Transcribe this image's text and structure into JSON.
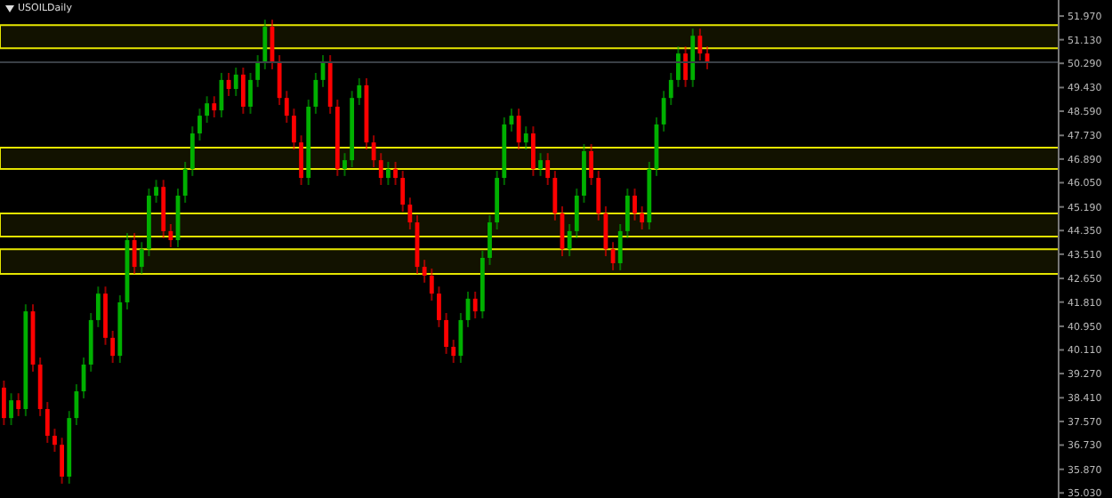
{
  "chart_data": {
    "type": "candlestick",
    "title": "USOILDaily",
    "categories": [
      null,
      null,
      null,
      null,
      null,
      null,
      null,
      null,
      null,
      null,
      null,
      null,
      null,
      null,
      null,
      null,
      null,
      null,
      null,
      null,
      null,
      null,
      null,
      null,
      null,
      null,
      null,
      null,
      null,
      null,
      null,
      null,
      null,
      null,
      null,
      null,
      null,
      null,
      null,
      null,
      null,
      null,
      null,
      null,
      null,
      null,
      null,
      null,
      null,
      null,
      null,
      null,
      null,
      null,
      null,
      null,
      null,
      null,
      null,
      null,
      null,
      null,
      null,
      null,
      null,
      null,
      null,
      null,
      null,
      null,
      null,
      null,
      null,
      null,
      null,
      null,
      null,
      null,
      null,
      null,
      null,
      null,
      null,
      null,
      null,
      null,
      null,
      null,
      null,
      null,
      null,
      null,
      null,
      null,
      null,
      null,
      null,
      null,
      null,
      null,
      null,
      null,
      null,
      null,
      null,
      null,
      null,
      null,
      null,
      null,
      null,
      null,
      null,
      null,
      null,
      null,
      null,
      null,
      null,
      null,
      null,
      null,
      null,
      null,
      null,
      null,
      null,
      null,
      null,
      null,
      null,
      null,
      null,
      null,
      null,
      null,
      null,
      null,
      null,
      null,
      null,
      null,
      null,
      null,
      null,
      null
    ],
    "colors": [
      "#ff0000",
      "#00b000",
      "#ff0000",
      "#00b000",
      "#ff0000",
      "#ff0000",
      "#ff0000",
      "#ff0000",
      "#ff0000",
      "#00b000",
      "#00b000",
      "#00b000",
      "#00b000",
      "#00b000",
      "#ff0000",
      "#ff0000",
      "#00b000",
      "#00b000",
      "#ff0000",
      "#00b000",
      "#00b000",
      "#00b000",
      "#ff0000",
      "#ff0000",
      "#00b000",
      "#00b000",
      "#00b000",
      "#00b000",
      "#00b000",
      "#ff0000",
      "#00b000",
      "#ff0000",
      "#00b000",
      "#ff0000",
      "#00b000",
      "#00b000",
      "#00b000",
      "#ff0000",
      "#ff0000",
      "#ff0000",
      "#ff0000",
      "#ff0000",
      "#00b000",
      "#00b000",
      "#00b000",
      "#ff0000",
      "#ff0000",
      "#00b000",
      "#00b000",
      "#00b000",
      "#ff0000",
      "#ff0000",
      "#ff0000",
      "#00b000",
      "#ff0000",
      "#ff0000",
      "#ff0000",
      "#ff0000",
      "#ff0000",
      "#ff0000",
      "#ff0000",
      "#ff0000",
      "#ff0000",
      "#00b000",
      "#00b000",
      "#ff0000",
      "#00b000",
      "#00b000",
      "#00b000",
      "#00b000",
      "#00b000",
      "#ff0000",
      "#00b000",
      "#ff0000",
      "#00b000",
      "#ff0000",
      "#ff0000",
      "#ff0000",
      "#00b000",
      "#00b000",
      "#00b000",
      "#ff0000",
      "#ff0000",
      "#ff0000",
      "#ff0000",
      "#00b000",
      "#00b000",
      "#ff0000",
      "#ff0000",
      "#00b000",
      "#00b000",
      "#00b000",
      "#00b000",
      "#00b000",
      "#ff0000",
      "#00b000",
      "#ff0000",
      "#ff0000",
      null,
      null,
      null,
      null,
      null,
      null,
      null,
      null,
      null,
      null,
      null,
      null,
      null,
      null,
      null,
      null,
      null,
      null,
      null,
      null,
      null,
      null,
      null,
      null,
      null,
      null,
      null,
      null,
      null,
      null,
      null,
      null,
      null,
      null,
      null,
      null,
      null,
      null,
      null,
      null,
      null,
      null,
      null,
      null,
      null,
      null,
      null,
      null
    ],
    "ohlc": [
      [
        38.77,
        39.02,
        37.44,
        37.69
      ],
      [
        37.69,
        38.57,
        37.44,
        38.32
      ],
      [
        38.32,
        38.57,
        37.76,
        38.01
      ],
      [
        38.01,
        41.73,
        37.76,
        41.48
      ],
      [
        41.48,
        41.73,
        39.34,
        39.59
      ],
      [
        39.59,
        39.84,
        37.76,
        38.01
      ],
      [
        38.01,
        38.26,
        36.81,
        37.06
      ],
      [
        37.06,
        37.31,
        36.49,
        36.74
      ],
      [
        36.74,
        36.99,
        35.36,
        35.61
      ],
      [
        35.61,
        37.94,
        35.36,
        37.69
      ],
      [
        37.69,
        38.89,
        37.44,
        38.64
      ],
      [
        38.64,
        39.84,
        38.39,
        39.59
      ],
      [
        39.59,
        41.42,
        39.34,
        41.17
      ],
      [
        41.17,
        42.36,
        40.92,
        42.11
      ],
      [
        42.11,
        42.36,
        40.29,
        40.54
      ],
      [
        40.54,
        40.79,
        39.65,
        39.9
      ],
      [
        39.9,
        42.05,
        39.65,
        41.8
      ],
      [
        41.8,
        44.26,
        41.55,
        44.01
      ],
      [
        44.01,
        44.26,
        42.81,
        43.06
      ],
      [
        43.06,
        43.94,
        42.81,
        43.69
      ],
      [
        43.69,
        45.84,
        43.44,
        45.59
      ],
      [
        45.59,
        46.15,
        45.34,
        45.9
      ],
      [
        45.9,
        46.15,
        44.08,
        44.33
      ],
      [
        44.33,
        44.58,
        43.76,
        44.01
      ],
      [
        44.01,
        45.84,
        43.76,
        45.59
      ],
      [
        45.59,
        46.79,
        45.34,
        46.54
      ],
      [
        46.54,
        48.05,
        46.29,
        47.8
      ],
      [
        47.8,
        48.68,
        47.55,
        48.43
      ],
      [
        48.43,
        49.12,
        48.18,
        48.87
      ],
      [
        48.87,
        49.12,
        48.37,
        48.62
      ],
      [
        48.62,
        49.95,
        48.37,
        49.7
      ],
      [
        49.7,
        49.95,
        49.13,
        49.38
      ],
      [
        49.38,
        50.14,
        49.13,
        49.89
      ],
      [
        49.89,
        50.14,
        48.5,
        48.75
      ],
      [
        48.75,
        49.95,
        48.5,
        49.7
      ],
      [
        49.7,
        50.58,
        49.45,
        50.33
      ],
      [
        50.33,
        51.84,
        50.08,
        51.59
      ],
      [
        51.59,
        51.84,
        50.08,
        50.33
      ],
      [
        50.33,
        50.58,
        48.81,
        49.06
      ],
      [
        49.06,
        49.31,
        48.18,
        48.43
      ],
      [
        48.43,
        48.68,
        47.23,
        47.48
      ],
      [
        47.48,
        47.73,
        45.97,
        46.22
      ],
      [
        46.22,
        49.0,
        45.97,
        48.75
      ],
      [
        48.75,
        49.95,
        48.5,
        49.7
      ],
      [
        49.7,
        50.58,
        49.45,
        50.33
      ],
      [
        50.33,
        50.58,
        48.5,
        48.75
      ],
      [
        48.75,
        49.0,
        46.29,
        46.54
      ],
      [
        46.54,
        47.1,
        46.29,
        46.85
      ],
      [
        46.85,
        49.31,
        46.6,
        49.06
      ],
      [
        49.06,
        49.76,
        48.81,
        49.51
      ],
      [
        49.51,
        49.76,
        47.23,
        47.48
      ],
      [
        47.48,
        47.73,
        46.6,
        46.85
      ],
      [
        46.85,
        47.1,
        45.97,
        46.22
      ],
      [
        46.22,
        46.79,
        45.97,
        46.54
      ],
      [
        46.54,
        46.79,
        45.97,
        46.22
      ],
      [
        46.22,
        46.47,
        45.02,
        45.27
      ],
      [
        45.27,
        45.52,
        44.39,
        44.64
      ],
      [
        44.64,
        44.89,
        42.81,
        43.06
      ],
      [
        43.06,
        43.31,
        42.5,
        42.75
      ],
      [
        42.75,
        43.0,
        41.86,
        42.11
      ],
      [
        42.11,
        42.36,
        40.92,
        41.17
      ],
      [
        41.17,
        41.42,
        39.97,
        40.22
      ],
      [
        40.22,
        40.47,
        39.65,
        39.9
      ],
      [
        39.9,
        41.42,
        39.65,
        41.17
      ],
      [
        41.17,
        42.18,
        40.92,
        41.93
      ],
      [
        41.93,
        42.18,
        41.23,
        41.48
      ],
      [
        41.48,
        43.63,
        41.23,
        43.38
      ],
      [
        43.38,
        44.89,
        43.13,
        44.64
      ],
      [
        44.64,
        46.47,
        44.39,
        46.22
      ],
      [
        46.22,
        48.37,
        45.97,
        48.12
      ],
      [
        48.12,
        48.68,
        47.87,
        48.43
      ],
      [
        48.43,
        48.68,
        47.23,
        47.48
      ],
      [
        47.48,
        48.05,
        47.23,
        47.8
      ],
      [
        47.8,
        48.05,
        46.29,
        46.54
      ],
      [
        46.54,
        47.1,
        46.29,
        46.85
      ],
      [
        46.85,
        47.1,
        45.97,
        46.22
      ],
      [
        46.22,
        46.47,
        44.71,
        44.96
      ],
      [
        44.96,
        45.21,
        43.44,
        43.69
      ],
      [
        43.69,
        44.58,
        43.44,
        44.33
      ],
      [
        44.33,
        45.84,
        44.08,
        45.59
      ],
      [
        45.59,
        47.42,
        45.34,
        47.17
      ],
      [
        47.17,
        47.42,
        45.97,
        46.22
      ],
      [
        46.22,
        46.47,
        44.71,
        44.96
      ],
      [
        44.96,
        45.21,
        43.44,
        43.69
      ],
      [
        43.69,
        43.94,
        42.94,
        43.19
      ],
      [
        43.19,
        44.58,
        42.94,
        44.33
      ],
      [
        44.33,
        45.84,
        44.08,
        45.59
      ],
      [
        45.59,
        45.84,
        44.71,
        44.96
      ],
      [
        44.96,
        45.21,
        44.39,
        44.64
      ],
      [
        44.64,
        46.79,
        44.39,
        46.54
      ],
      [
        46.54,
        48.37,
        46.29,
        48.12
      ],
      [
        48.12,
        49.31,
        47.87,
        49.06
      ],
      [
        49.06,
        49.95,
        48.81,
        49.7
      ],
      [
        49.7,
        50.89,
        49.45,
        50.64
      ],
      [
        50.64,
        50.89,
        49.45,
        49.7
      ],
      [
        49.7,
        51.52,
        49.45,
        51.27
      ],
      [
        51.27,
        51.52,
        50.39,
        50.64
      ],
      [
        50.64,
        50.89,
        50.08,
        50.33
      ],
      null,
      null,
      null,
      null,
      null,
      null,
      null,
      null,
      null,
      null,
      null,
      null,
      null,
      null,
      null,
      null,
      null,
      null,
      null,
      null,
      null,
      null,
      null,
      null,
      null,
      null,
      null,
      null,
      null,
      null,
      null,
      null,
      null,
      null,
      null,
      null,
      null,
      null,
      null,
      null,
      null,
      null,
      null,
      null,
      null,
      null,
      null,
      null
    ],
    "ylim": [
      34.85,
      52.54
    ],
    "yticks": [
      {
        "value": 51.97,
        "label": "51.970"
      },
      {
        "value": 51.13,
        "label": "51.130"
      },
      {
        "value": 50.29,
        "label": "50.290"
      },
      {
        "value": 49.43,
        "label": "49.430"
      },
      {
        "value": 48.59,
        "label": "48.590"
      },
      {
        "value": 47.73,
        "label": "47.730"
      },
      {
        "value": 46.89,
        "label": "46.890"
      },
      {
        "value": 46.05,
        "label": "46.050"
      },
      {
        "value": 45.19,
        "label": "45.190"
      },
      {
        "value": 44.35,
        "label": "44.350"
      },
      {
        "value": 43.51,
        "label": "43.510"
      },
      {
        "value": 42.65,
        "label": "42.650"
      },
      {
        "value": 41.81,
        "label": "41.810"
      },
      {
        "value": 40.95,
        "label": "40.950"
      },
      {
        "value": 40.11,
        "label": "40.110"
      },
      {
        "value": 39.27,
        "label": "39.270"
      },
      {
        "value": 38.41,
        "label": "38.410"
      },
      {
        "value": 37.57,
        "label": "37.570"
      },
      {
        "value": 36.73,
        "label": "36.730"
      },
      {
        "value": 35.87,
        "label": "35.870"
      },
      {
        "value": 35.03,
        "label": "35.030"
      }
    ],
    "tick_labels": "y",
    "grid": false,
    "ref_lines": [
      {
        "axis": "y",
        "value": 50.33,
        "color": "#3a3f46"
      }
    ],
    "bands": [
      {
        "axis": "y",
        "from": 50.83,
        "to": 51.65,
        "color": "#e6e600"
      },
      {
        "axis": "y",
        "from": 46.54,
        "to": 47.3,
        "color": "#e6e600"
      },
      {
        "axis": "y",
        "from": 44.14,
        "to": 44.96,
        "color": "#e6e600"
      },
      {
        "axis": "y",
        "from": 42.81,
        "to": 43.69,
        "color": "#e6e600"
      }
    ]
  }
}
